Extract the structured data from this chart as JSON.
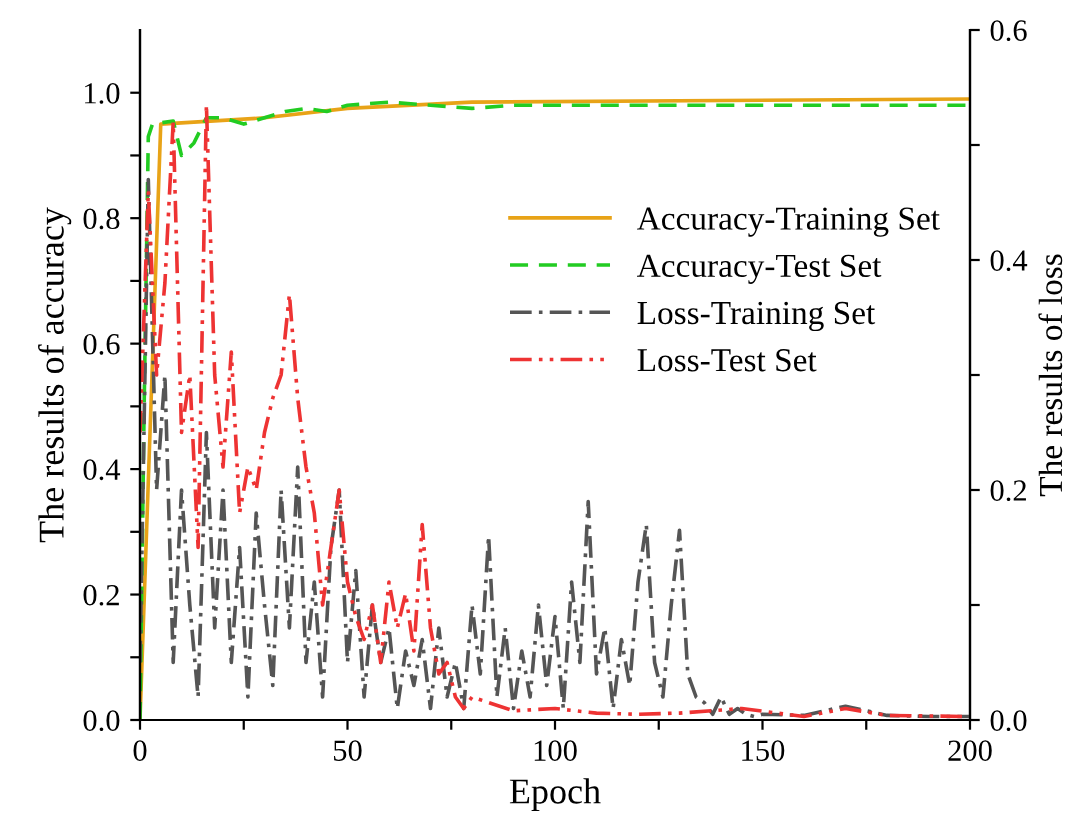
{
  "chart_data": {
    "type": "line",
    "xlabel": "Epoch",
    "ylabel": "The results of accuracy",
    "y2label": "The results of loss",
    "xlim": [
      0,
      200
    ],
    "xticks": [
      0,
      {
        "value": 25,
        "label": null
      },
      50,
      {
        "value": 75,
        "label": null
      },
      100,
      {
        "value": 125,
        "label": null
      },
      150,
      {
        "value": 175,
        "label": null
      },
      200
    ],
    "ylim": [
      0,
      1.1
    ],
    "yticks": [
      {
        "value": 0,
        "label": "0.0"
      },
      {
        "value": 0.1,
        "label": null
      },
      0.2,
      {
        "value": 0.3,
        "label": null
      },
      0.4,
      {
        "value": 0.5,
        "label": null
      },
      0.6,
      {
        "value": 0.7,
        "label": null
      },
      0.8,
      {
        "value": 0.9,
        "label": null
      },
      {
        "value": 1,
        "label": "1.0"
      }
    ],
    "y2lim": [
      0,
      0.6
    ],
    "y2ticks": [
      {
        "value": 0,
        "label": "0.0"
      },
      {
        "value": 0.1,
        "label": null
      },
      0.2,
      {
        "value": 0.3,
        "label": null
      },
      0.4,
      {
        "value": 0.5,
        "label": null
      },
      0.6
    ],
    "grid": false,
    "legend": "right",
    "series": [
      {
        "name": "Accuracy-Training Set",
        "color": "#e8a317",
        "line_style": "solid",
        "x": [
          0,
          5,
          30,
          50,
          80,
          200
        ],
        "values": [
          0,
          0.95,
          0.96,
          0.975,
          0.985,
          0.99
        ]
      },
      {
        "name": "Accuracy-Test Set",
        "color": "#22cc22",
        "line_style": "dashed",
        "x": [
          0,
          1,
          2,
          3,
          8,
          10,
          13,
          16,
          20,
          25,
          30,
          35,
          40,
          45,
          50,
          60,
          70,
          80,
          90,
          100,
          120,
          200
        ],
        "values": [
          0,
          0.5,
          0.93,
          0.95,
          0.955,
          0.9,
          0.92,
          0.96,
          0.96,
          0.95,
          0.96,
          0.97,
          0.975,
          0.97,
          0.98,
          0.985,
          0.98,
          0.975,
          0.98,
          0.98,
          0.98,
          0.98
        ]
      },
      {
        "name": "Loss-Training Set",
        "color": "#555555",
        "line_style": "dashdot",
        "axis": "y2",
        "x": [
          0,
          2,
          4,
          6,
          8,
          10,
          12,
          14,
          16,
          18,
          20,
          22,
          24,
          26,
          28,
          30,
          32,
          34,
          36,
          38,
          40,
          42,
          44,
          46,
          48,
          50,
          52,
          54,
          56,
          58,
          60,
          62,
          64,
          66,
          68,
          70,
          72,
          74,
          76,
          78,
          80,
          82,
          84,
          86,
          88,
          90,
          92,
          94,
          96,
          98,
          100,
          102,
          104,
          106,
          108,
          110,
          112,
          114,
          116,
          118,
          120,
          122,
          124,
          126,
          128,
          130,
          132,
          134,
          136,
          138,
          140,
          142,
          144,
          146,
          148,
          150,
          160,
          170,
          180,
          190,
          200
        ],
        "values": [
          0.05,
          0.47,
          0.2,
          0.3,
          0.05,
          0.2,
          0.1,
          0.02,
          0.25,
          0.08,
          0.2,
          0.05,
          0.15,
          0.02,
          0.18,
          0.1,
          0.03,
          0.2,
          0.08,
          0.22,
          0.05,
          0.12,
          0.02,
          0.15,
          0.2,
          0.05,
          0.13,
          0.02,
          0.1,
          0.05,
          0.08,
          0.01,
          0.06,
          0.03,
          0.07,
          0.01,
          0.08,
          0.02,
          0.05,
          0.01,
          0.1,
          0.04,
          0.16,
          0.02,
          0.08,
          0.01,
          0.06,
          0.02,
          0.1,
          0.03,
          0.09,
          0.01,
          0.12,
          0.05,
          0.19,
          0.04,
          0.08,
          0.01,
          0.07,
          0.03,
          0.12,
          0.17,
          0.05,
          0.02,
          0.1,
          0.165,
          0.04,
          0.02,
          0.015,
          0.005,
          0.02,
          0.005,
          0.01,
          0.005,
          0.003,
          0.005,
          0.004,
          0.012,
          0.004,
          0.003,
          0.003
        ]
      },
      {
        "name": "Loss-Test Set",
        "color": "#ee3333",
        "line_style": "dashdotdot",
        "axis": "y2",
        "x": [
          0,
          2,
          4,
          6,
          8,
          10,
          12,
          14,
          16,
          18,
          20,
          22,
          24,
          26,
          28,
          30,
          32,
          34,
          36,
          38,
          40,
          42,
          44,
          46,
          48,
          50,
          52,
          54,
          56,
          58,
          60,
          62,
          64,
          66,
          68,
          70,
          72,
          74,
          76,
          78,
          80,
          90,
          100,
          110,
          120,
          130,
          145,
          160,
          170,
          180,
          200
        ],
        "values": [
          0.25,
          0.46,
          0.3,
          0.38,
          0.52,
          0.25,
          0.3,
          0.15,
          0.535,
          0.3,
          0.22,
          0.32,
          0.18,
          0.22,
          0.2,
          0.25,
          0.28,
          0.3,
          0.37,
          0.28,
          0.22,
          0.18,
          0.1,
          0.15,
          0.2,
          0.12,
          0.09,
          0.07,
          0.1,
          0.05,
          0.12,
          0.08,
          0.11,
          0.06,
          0.17,
          0.08,
          0.04,
          0.05,
          0.02,
          0.01,
          0.02,
          0.008,
          0.01,
          0.006,
          0.005,
          0.006,
          0.01,
          0.003,
          0.01,
          0.004,
          0.003
        ]
      }
    ]
  }
}
